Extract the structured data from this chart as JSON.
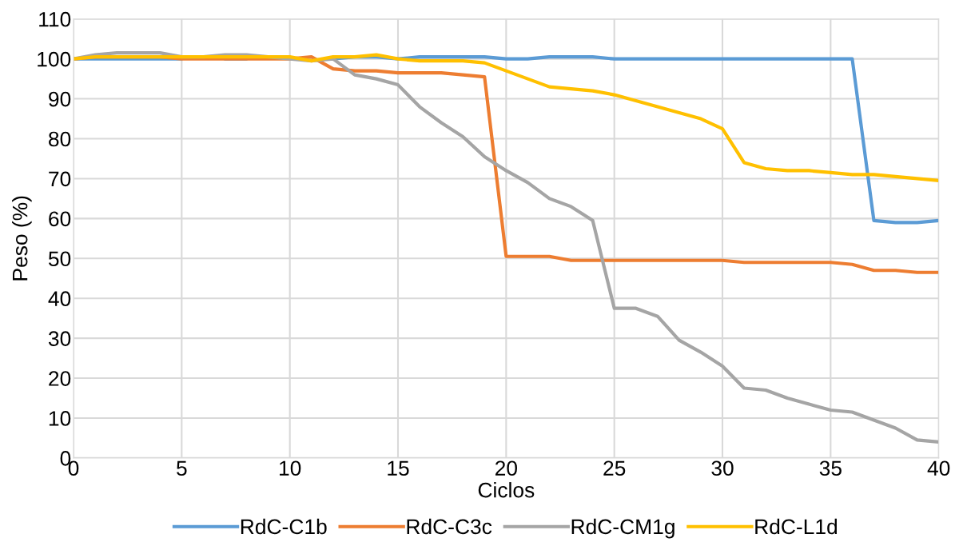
{
  "chart_data": {
    "type": "line",
    "xlabel": "Ciclos",
    "ylabel": "Peso (%)",
    "x": [
      0,
      1,
      2,
      3,
      4,
      5,
      6,
      7,
      8,
      9,
      10,
      11,
      12,
      13,
      14,
      15,
      16,
      17,
      18,
      19,
      20,
      21,
      22,
      23,
      24,
      25,
      26,
      27,
      28,
      29,
      30,
      31,
      32,
      33,
      34,
      35,
      36,
      37,
      38,
      39,
      40
    ],
    "xlim": [
      0,
      40
    ],
    "xticks": [
      0,
      5,
      10,
      15,
      20,
      25,
      30,
      35,
      40
    ],
    "ylim": [
      0,
      110
    ],
    "yticks": [
      0,
      10,
      20,
      30,
      40,
      50,
      60,
      70,
      80,
      90,
      100,
      110
    ],
    "grid": true,
    "legend": "bottom",
    "marker": "none",
    "line_style": "solid",
    "series": [
      {
        "name": "RdC-C1b",
        "color": "#5b9bd5",
        "values": [
          100,
          100,
          100,
          100,
          100,
          100,
          null,
          100,
          100,
          null,
          null,
          null,
          100,
          100.5,
          100.5,
          100,
          100.5,
          100.5,
          100.5,
          100.5,
          100,
          100,
          100.5,
          100.5,
          100.5,
          100,
          100,
          100,
          100,
          100,
          100,
          100,
          100,
          100,
          100,
          100,
          100,
          59.5,
          59,
          59,
          59.5
        ]
      },
      {
        "name": "RdC-C3c",
        "color": "#ed7d31",
        "values": [
          100,
          100.5,
          100.5,
          100.5,
          100.5,
          100,
          100,
          100,
          100,
          100,
          100,
          100.5,
          97.5,
          97,
          97,
          96.5,
          96.5,
          96.5,
          96,
          95.5,
          50.5,
          50.5,
          50.5,
          49.5,
          49.5,
          49.5,
          49.5,
          49.5,
          49.5,
          49.5,
          49.5,
          49,
          49,
          49,
          49,
          49,
          48.5,
          47,
          47,
          46.5,
          46.5
        ]
      },
      {
        "name": "RdC-CM1g",
        "color": "#a5a5a5",
        "values": [
          100,
          101,
          101.5,
          101.5,
          101.5,
          100.5,
          100.5,
          101,
          101,
          100.5,
          100,
          99.5,
          100,
          96,
          95,
          93.5,
          88,
          84,
          80.5,
          75.5,
          72,
          69,
          65,
          63,
          59.5,
          37.5,
          37.5,
          35.5,
          29.5,
          26.5,
          23,
          17.5,
          17,
          15,
          13.5,
          12,
          11.5,
          9.5,
          7.5,
          4.5,
          4
        ]
      },
      {
        "name": "RdC-L1d",
        "color": "#ffc000",
        "values": [
          100,
          100.5,
          100.5,
          100.5,
          100.5,
          100.5,
          100.5,
          100.5,
          100.5,
          100.5,
          100.5,
          99.5,
          100.5,
          100.5,
          101,
          100,
          99.5,
          99.5,
          99.5,
          99,
          97,
          95,
          93,
          92.5,
          92,
          91,
          89.5,
          88,
          86.5,
          85,
          82.5,
          74,
          72.5,
          72,
          72,
          71.5,
          71,
          71,
          70.5,
          70,
          69.5
        ]
      }
    ]
  }
}
